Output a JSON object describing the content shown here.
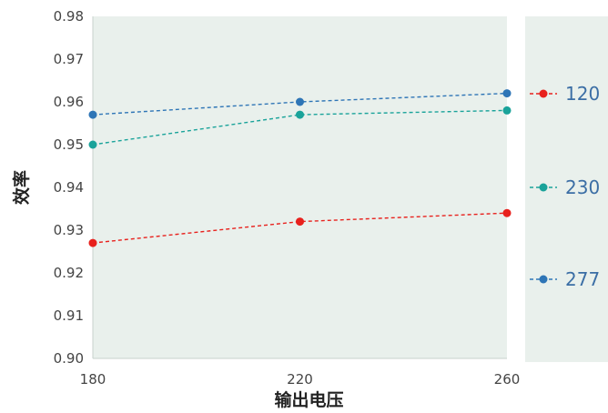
{
  "chart_data": {
    "type": "line",
    "title": "",
    "xlabel": "输出电压",
    "ylabel": "效率",
    "x": [
      180,
      220,
      260
    ],
    "xlim": [
      180,
      260
    ],
    "ylim": [
      0.9,
      0.98
    ],
    "yticks": [
      "0.90",
      "0.91",
      "0.92",
      "0.93",
      "0.94",
      "0.95",
      "0.96",
      "0.97",
      "0.98"
    ],
    "xticks": [
      "180",
      "220",
      "260"
    ],
    "grid": false,
    "legend_position": "right",
    "plot_background": "#e9f0ec",
    "series": [
      {
        "name": "120",
        "values": [
          0.927,
          0.932,
          0.934
        ],
        "color": "#e8211d"
      },
      {
        "name": "230",
        "values": [
          0.95,
          0.957,
          0.958
        ],
        "color": "#1aa39a"
      },
      {
        "name": "277",
        "values": [
          0.957,
          0.96,
          0.962
        ],
        "color": "#2e75b6"
      }
    ]
  }
}
